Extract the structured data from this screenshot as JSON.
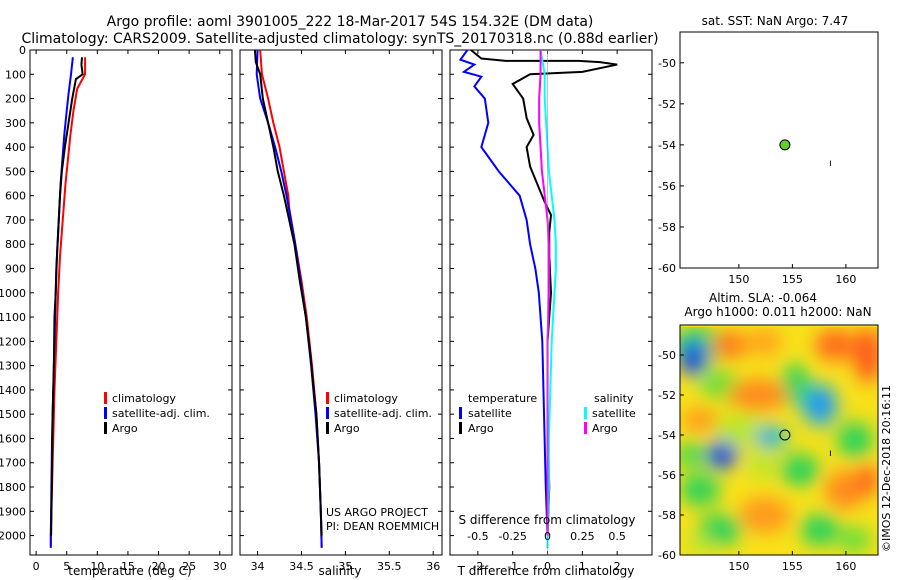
{
  "header": {
    "line1": "Argo profile: aoml 3901005_222 18-Mar-2017 54S 154.32E (DM data)",
    "line2": "Climatology: CARS2009. Satellite-adjusted climatology: synTS_20170318.nc (0.88d earlier)"
  },
  "colors": {
    "climatology": "#ff0000",
    "satellite": "#0000ff",
    "argo": "#000000",
    "satellite_salinity": "#00ffff",
    "argo_salinity_diff": "#ff00ff",
    "marker": "#66cc33"
  },
  "credit": "©IMOS 12-Dec-2018 20:16:11",
  "project": {
    "line1": "US ARGO PROJECT",
    "line2": "PI: DEAN ROEMMICH"
  },
  "chart_data": [
    {
      "type": "line",
      "id": "temperature",
      "xlabel": "temperature (deg C)",
      "ylabel": "",
      "xlim": [
        -1,
        32
      ],
      "ylim": [
        2080,
        0
      ],
      "xticks": [
        0,
        5,
        10,
        15,
        20,
        25,
        30
      ],
      "yticks": [
        0,
        100,
        200,
        300,
        400,
        500,
        600,
        700,
        800,
        900,
        1000,
        1100,
        1200,
        1300,
        1400,
        1500,
        1600,
        1700,
        1800,
        1900,
        2000
      ],
      "legend": {
        "position": "bottom-right",
        "entries": [
          "climatology",
          "satellite-adj. clim.",
          "Argo"
        ]
      },
      "series": [
        {
          "name": "climatology",
          "color": "#ff0000",
          "points": [
            [
              8.0,
              30
            ],
            [
              8.0,
              100
            ],
            [
              6.7,
              160
            ],
            [
              6.1,
              250
            ],
            [
              5.6,
              350
            ],
            [
              5.2,
              450
            ],
            [
              4.8,
              550
            ],
            [
              4.5,
              650
            ],
            [
              4.2,
              750
            ],
            [
              3.9,
              850
            ],
            [
              3.6,
              1000
            ],
            [
              3.3,
              1200
            ],
            [
              3.0,
              1400
            ],
            [
              2.8,
              1600
            ],
            [
              2.6,
              1800
            ],
            [
              2.4,
              2000
            ],
            [
              2.4,
              2050
            ]
          ]
        },
        {
          "name": "satellite-adj. clim.",
          "color": "#0000ff",
          "points": [
            [
              6.0,
              30
            ],
            [
              5.7,
              100
            ],
            [
              5.3,
              180
            ],
            [
              5.0,
              250
            ],
            [
              4.6,
              350
            ],
            [
              4.3,
              450
            ],
            [
              4.0,
              550
            ],
            [
              3.8,
              650
            ],
            [
              3.6,
              750
            ],
            [
              3.4,
              850
            ],
            [
              3.2,
              1000
            ],
            [
              3.0,
              1200
            ],
            [
              2.8,
              1400
            ],
            [
              2.6,
              1600
            ],
            [
              2.5,
              1800
            ],
            [
              2.4,
              2000
            ],
            [
              2.4,
              2050
            ]
          ]
        },
        {
          "name": "Argo",
          "color": "#000000",
          "points": [
            [
              7.5,
              30
            ],
            [
              7.4,
              60
            ],
            [
              7.6,
              100
            ],
            [
              6.5,
              120
            ],
            [
              5.9,
              200
            ],
            [
              5.3,
              300
            ],
            [
              4.7,
              400
            ],
            [
              4.2,
              500
            ],
            [
              3.9,
              600
            ],
            [
              3.7,
              700
            ],
            [
              3.5,
              800
            ],
            [
              3.3,
              900
            ],
            [
              3.2,
              1000
            ],
            [
              3.0,
              1100
            ],
            [
              2.9,
              1300
            ],
            [
              2.7,
              1500
            ],
            [
              2.6,
              1700
            ],
            [
              2.5,
              1900
            ],
            [
              2.45,
              2000
            ]
          ]
        }
      ]
    },
    {
      "type": "line",
      "id": "salinity",
      "xlabel": "salinity",
      "ylabel": "",
      "xlim": [
        33.8,
        36.1
      ],
      "ylim": [
        2080,
        0
      ],
      "xticks": [
        34,
        34.5,
        35,
        35.5,
        36
      ],
      "legend": {
        "position": "bottom-right",
        "entries": [
          "climatology",
          "satellite-adj. clim.",
          "Argo"
        ]
      },
      "series": [
        {
          "name": "climatology",
          "color": "#ff0000",
          "points": [
            [
              34.03,
              0
            ],
            [
              34.05,
              100
            ],
            [
              34.12,
              200
            ],
            [
              34.18,
              300
            ],
            [
              34.25,
              400
            ],
            [
              34.3,
              500
            ],
            [
              34.35,
              600
            ],
            [
              34.36,
              650
            ],
            [
              34.43,
              800
            ],
            [
              34.5,
              950
            ],
            [
              34.56,
              1100
            ],
            [
              34.62,
              1300
            ],
            [
              34.67,
              1500
            ],
            [
              34.7,
              1700
            ],
            [
              34.72,
              1900
            ],
            [
              34.73,
              2050
            ]
          ]
        },
        {
          "name": "satellite-adj. clim.",
          "color": "#0000ff",
          "points": [
            [
              34.0,
              0
            ],
            [
              33.99,
              100
            ],
            [
              34.03,
              200
            ],
            [
              34.12,
              300
            ],
            [
              34.2,
              400
            ],
            [
              34.27,
              500
            ],
            [
              34.33,
              600
            ],
            [
              34.38,
              700
            ],
            [
              34.43,
              800
            ],
            [
              34.49,
              950
            ],
            [
              34.55,
              1100
            ],
            [
              34.61,
              1300
            ],
            [
              34.66,
              1500
            ],
            [
              34.7,
              1700
            ],
            [
              34.72,
              1900
            ],
            [
              34.73,
              2050
            ]
          ]
        },
        {
          "name": "Argo",
          "color": "#000000",
          "points": [
            [
              33.97,
              0
            ],
            [
              33.98,
              50
            ],
            [
              34.03,
              100
            ],
            [
              34.06,
              200
            ],
            [
              34.12,
              300
            ],
            [
              34.18,
              400
            ],
            [
              34.23,
              500
            ],
            [
              34.3,
              600
            ],
            [
              34.36,
              700
            ],
            [
              34.42,
              800
            ],
            [
              34.48,
              950
            ],
            [
              34.55,
              1100
            ],
            [
              34.6,
              1250
            ],
            [
              34.64,
              1400
            ],
            [
              34.67,
              1500
            ],
            [
              34.7,
              1700
            ],
            [
              34.72,
              1900
            ],
            [
              34.73,
              2000
            ]
          ]
        }
      ]
    },
    {
      "type": "line",
      "id": "difference",
      "xlabel": "T difference from climatology",
      "ylabel": "",
      "xlim": [
        -2.8,
        3.0
      ],
      "ylim": [
        2080,
        0
      ],
      "xticks": [
        -2,
        -1,
        0,
        1,
        2
      ],
      "xticks_top": [
        -0.5,
        -0.25,
        0,
        0.25,
        0.5
      ],
      "top_axis_label": "S difference from climatology",
      "legend": {
        "position": "bottom",
        "temperature_title": "temperature",
        "temperature_entries": [
          "satellite",
          "Argo"
        ],
        "salinity_title": "salinity",
        "salinity_entries": [
          "satellite",
          "Argo"
        ]
      },
      "series": [
        {
          "name": "satellite",
          "group": "temperature",
          "color": "#0000ff",
          "points": [
            [
              -2.3,
              0
            ],
            [
              -2.5,
              40
            ],
            [
              -2.1,
              60
            ],
            [
              -2.4,
              90
            ],
            [
              -1.9,
              110
            ],
            [
              -2.1,
              150
            ],
            [
              -1.8,
              200
            ],
            [
              -1.7,
              300
            ],
            [
              -1.9,
              400
            ],
            [
              -1.4,
              500
            ],
            [
              -1.1,
              550
            ],
            [
              -0.8,
              600
            ],
            [
              -0.6,
              700
            ],
            [
              -0.5,
              800
            ],
            [
              -0.35,
              900
            ],
            [
              -0.25,
              1000
            ],
            [
              -0.15,
              1200
            ],
            [
              -0.1,
              1500
            ],
            [
              -0.05,
              1800
            ],
            [
              0.0,
              2000
            ],
            [
              0.0,
              2050
            ]
          ]
        },
        {
          "name": "Argo",
          "group": "temperature",
          "color": "#000000",
          "points": [
            [
              -2.2,
              0
            ],
            [
              -1.9,
              35
            ],
            [
              -1.2,
              45
            ],
            [
              0.9,
              45
            ],
            [
              1.5,
              50
            ],
            [
              2.0,
              60
            ],
            [
              1.0,
              90
            ],
            [
              -0.5,
              100
            ],
            [
              -1.0,
              140
            ],
            [
              -0.7,
              200
            ],
            [
              -0.6,
              280
            ],
            [
              -0.4,
              350
            ],
            [
              -0.6,
              400
            ],
            [
              -0.5,
              480
            ],
            [
              -0.3,
              550
            ],
            [
              -0.1,
              620
            ],
            [
              0.1,
              680
            ],
            [
              0.05,
              750
            ],
            [
              0.05,
              850
            ],
            [
              0.1,
              1000
            ],
            [
              0.0,
              1200
            ],
            [
              0.0,
              1500
            ],
            [
              0.05,
              1800
            ],
            [
              0.0,
              2000
            ]
          ]
        },
        {
          "name": "satellite",
          "group": "salinity",
          "color": "#00ffff",
          "points": [
            [
              -0.05,
              0
            ],
            [
              -0.02,
              100
            ],
            [
              -0.02,
              200
            ],
            [
              -0.01,
              300
            ],
            [
              0.0,
              400
            ],
            [
              0.01,
              500
            ],
            [
              0.03,
              600
            ],
            [
              0.05,
              700
            ],
            [
              0.06,
              800
            ],
            [
              0.06,
              900
            ],
            [
              0.05,
              1000
            ],
            [
              0.03,
              1200
            ],
            [
              0.02,
              1400
            ],
            [
              0.01,
              1600
            ],
            [
              0.01,
              1800
            ],
            [
              0.0,
              2000
            ],
            [
              0.0,
              2050
            ]
          ]
        },
        {
          "name": "Argo",
          "group": "salinity",
          "color": "#ff00ff",
          "points": [
            [
              -0.05,
              0
            ],
            [
              -0.05,
              100
            ],
            [
              -0.06,
              200
            ],
            [
              -0.06,
              300
            ],
            [
              -0.05,
              400
            ],
            [
              -0.04,
              500
            ],
            [
              -0.02,
              600
            ],
            [
              0.0,
              700
            ],
            [
              0.01,
              800
            ],
            [
              0.01,
              1000
            ],
            [
              0.0,
              1200
            ],
            [
              0.0,
              1500
            ],
            [
              0.0,
              1800
            ],
            [
              0.0,
              2000
            ]
          ]
        }
      ]
    }
  ],
  "sst_map": {
    "title": "sat. SST: NaN Argo: 7.47",
    "xticks": [
      150,
      155,
      160
    ],
    "yticks": [
      -50,
      -52,
      -54,
      -56,
      -58,
      -60
    ],
    "xlim": [
      144.5,
      163
    ],
    "ylim": [
      -60,
      -48.5
    ],
    "profile": [
      154.3,
      -54.0
    ]
  },
  "sla_map": {
    "title_line1": "Altim. SLA: -0.064",
    "title_line2": "Argo h1000: 0.011 h2000: NaN",
    "xticks": [
      150,
      155,
      160
    ],
    "yticks": [
      -50,
      -52,
      -54,
      -56,
      -58,
      -60
    ],
    "xlim": [
      144.5,
      163
    ],
    "ylim": [
      -60,
      -48.5
    ],
    "profile": [
      154.3,
      -54.0
    ]
  }
}
